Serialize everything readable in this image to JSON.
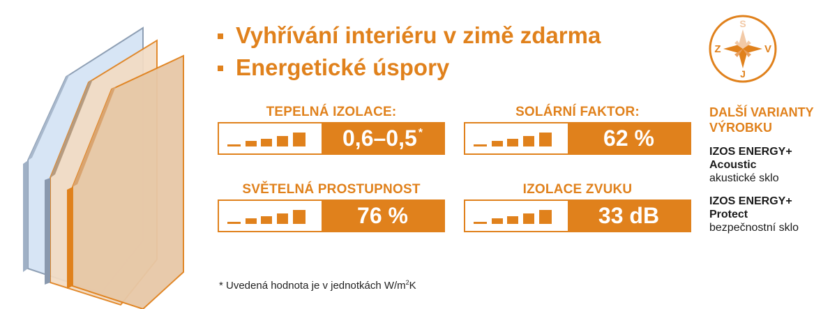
{
  "benefits": [
    {
      "text": "Vyhřívání interiéru v zimě zdarma"
    },
    {
      "text": "Energetické úspory"
    }
  ],
  "metrics": [
    {
      "label": "TEPELNÁ IZOLACE:",
      "value": "0,6–0,5",
      "marker": "*"
    },
    {
      "label": "SOLÁRNÍ FAKTOR:",
      "value": "62 %"
    },
    {
      "label": "SVĚTELNÁ PROSTUPNOST",
      "value": "76 %"
    },
    {
      "label": "IZOLACE ZVUKU",
      "value": "33 dB"
    }
  ],
  "footnote": {
    "text": "* Uvedená hodnota je v jednotkách W/m",
    "superscript": "2",
    "unit_suffix": "K"
  },
  "compass": {
    "north": "S",
    "south": "J",
    "west": "Z",
    "east": "V",
    "highlighted": "S"
  },
  "variants": {
    "title_line1": "DALŠÍ VARIANTY",
    "title_line2": "VÝROBKU",
    "items": [
      {
        "name_line1": "IZOS ENERGY+",
        "name_line2": "Acoustic",
        "desc": "akustické sklo"
      },
      {
        "name_line1": "IZOS ENERGY+",
        "name_line2": "Protect",
        "desc": "bezpečnostní sklo"
      }
    ]
  },
  "colors": {
    "accent": "#e0811c",
    "compass_fill": "#f2c9a6",
    "glass_outer": "#c9daf0",
    "glass_inner": "#e9c9a5"
  }
}
